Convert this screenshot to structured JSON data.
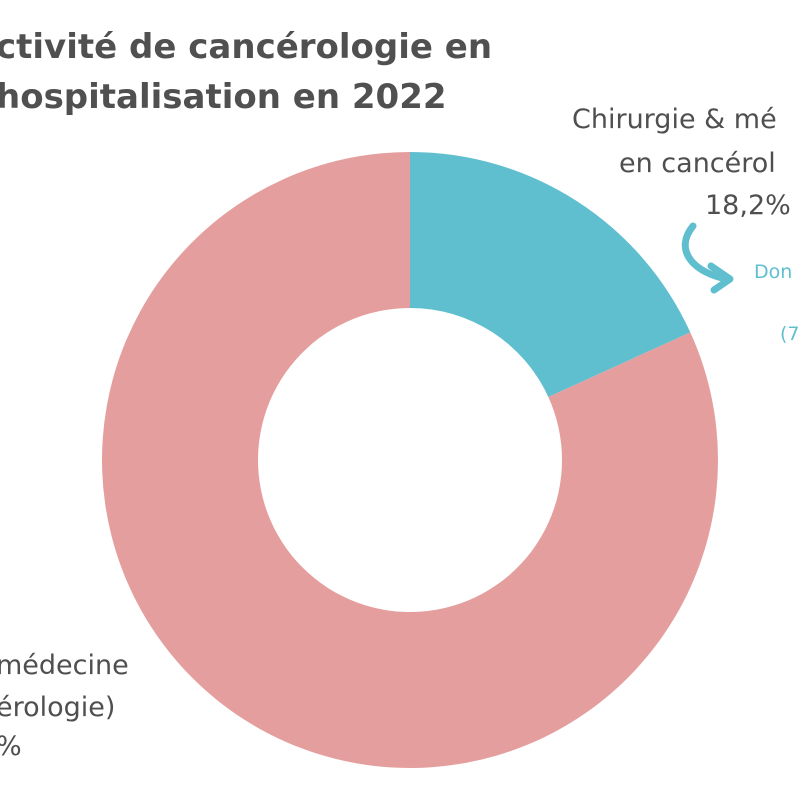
{
  "chart_data": {
    "type": "donut",
    "title_lines": [
      "ctivité de cancérologie en",
      "hospitalisation en 2022"
    ],
    "colors": {
      "cancer": "#5fbfcf",
      "other": "#e59e9e",
      "accent": "#5fbfcf"
    },
    "slices": [
      {
        "label_lines": [
          "Chirurgie & mé",
          "en cancérol"
        ],
        "value": 18.2,
        "value_label": "18,2%",
        "color_key": "cancer"
      },
      {
        "label_lines": [
          "médecine",
          "érologie)"
        ],
        "value": 81.8,
        "value_label": "%",
        "color_key": "other"
      }
    ],
    "annotation": {
      "line1": "Don",
      "line2": "(7",
      "icon": "curved-arrow-icon"
    }
  }
}
